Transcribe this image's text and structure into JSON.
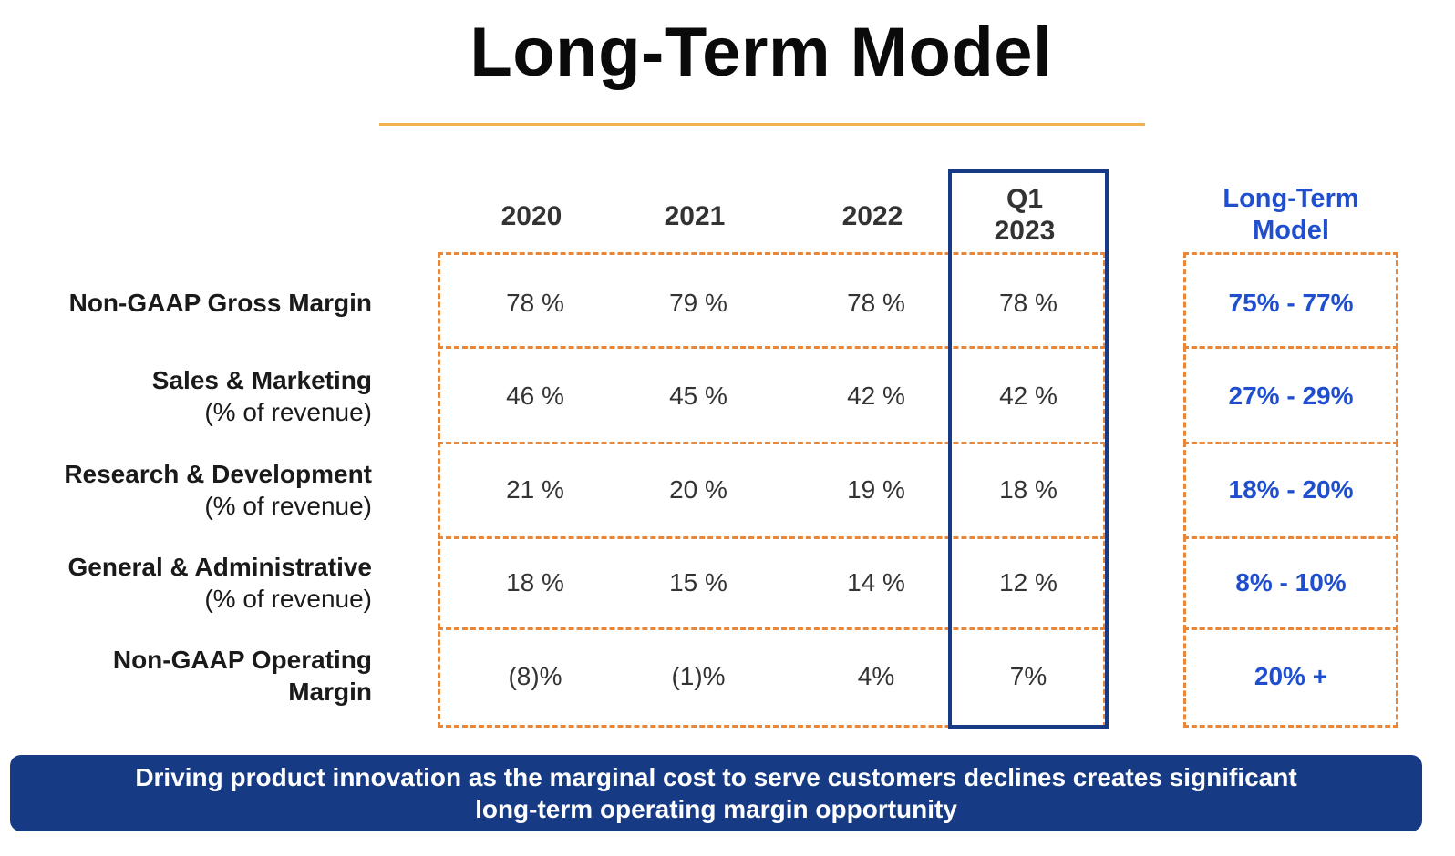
{
  "title": "Long-Term Model",
  "columns": {
    "c2020": "2020",
    "c2021": "2021",
    "c2022": "2022",
    "q1_line1": "Q1",
    "q1_line2": "2023",
    "lt_line1": "Long-Term",
    "lt_line2": "Model"
  },
  "rows": [
    {
      "label": "Non-GAAP Gross Margin",
      "sublabel": "",
      "values": [
        "78 %",
        "79 %",
        "78 %",
        "78 %"
      ],
      "long_term": "75% - 77%"
    },
    {
      "label": "Sales & Marketing",
      "sublabel": "(% of revenue)",
      "values": [
        "46 %",
        "45 %",
        "42 %",
        "42 %"
      ],
      "long_term": "27% - 29%"
    },
    {
      "label": "Research & Development",
      "sublabel": "(% of revenue)",
      "values": [
        "21 %",
        "20 %",
        "19 %",
        "18 %"
      ],
      "long_term": "18% - 20%"
    },
    {
      "label": "General & Administrative",
      "sublabel": "(% of revenue)",
      "values": [
        "18 %",
        "15 %",
        "14 %",
        "12 %"
      ],
      "long_term": "8% - 10%"
    },
    {
      "label": "Non-GAAP Operating",
      "sublabel": "Margin",
      "values": [
        "(8)%",
        "(1)%",
        "4%",
        "7%"
      ],
      "long_term": "20% +"
    }
  ],
  "banner": {
    "line1": "Driving product innovation as the marginal cost to serve customers declines creates significant",
    "line2": "long-term operating margin opportunity"
  },
  "colors": {
    "accent_orange": "#e8873a",
    "rule_gold": "#f2b04e",
    "navy": "#173a84",
    "long_term_blue": "#1f4fcf"
  }
}
